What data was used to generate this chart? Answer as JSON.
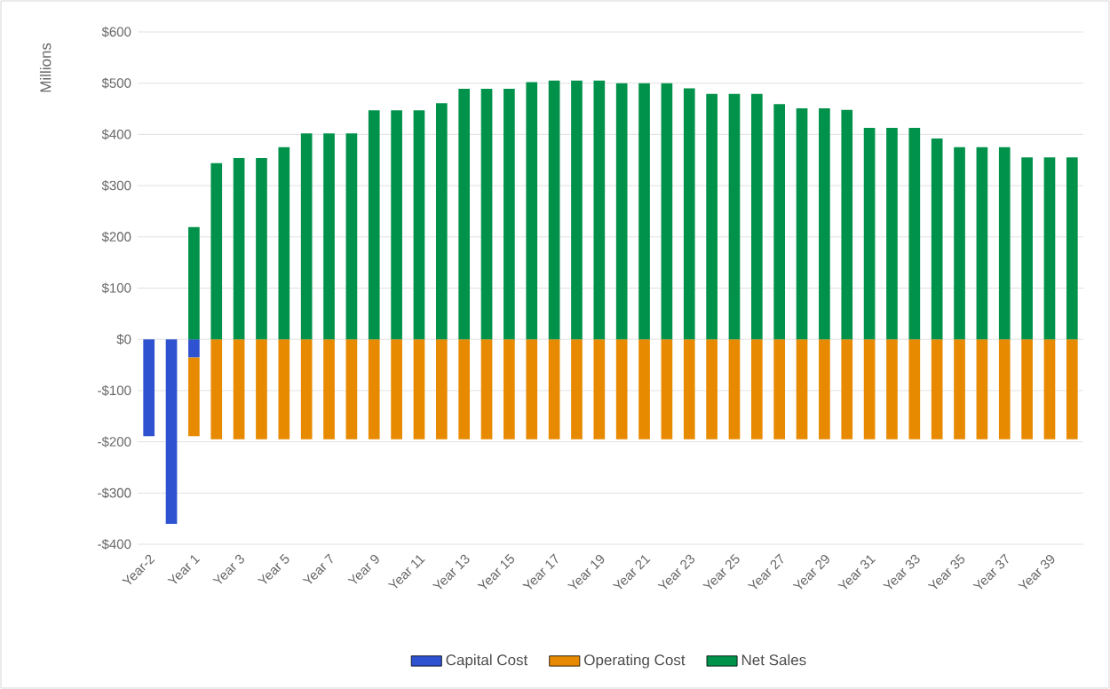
{
  "chart_data": {
    "type": "bar",
    "stacked": true,
    "ylabel": "Millions",
    "categories": [
      "Year-2",
      null,
      "Year 1",
      null,
      "Year 3",
      null,
      "Year 5",
      null,
      "Year 7",
      null,
      "Year 9",
      null,
      "Year 11",
      null,
      "Year 13",
      null,
      "Year 15",
      null,
      "Year 17",
      null,
      "Year 19",
      null,
      "Year 21",
      null,
      "Year 23",
      null,
      "Year 25",
      null,
      "Year 27",
      null,
      "Year 29",
      null,
      "Year 31",
      null,
      "Year 33",
      null,
      "Year 35",
      null,
      "Year 37",
      null,
      "Year 39",
      null
    ],
    "series": [
      {
        "name": "Capital Cost",
        "color": "#2e52d0",
        "values": [
          -189,
          -360,
          -35,
          0,
          0,
          0,
          0,
          0,
          0,
          0,
          0,
          0,
          0,
          0,
          0,
          0,
          0,
          0,
          0,
          0,
          0,
          0,
          0,
          0,
          0,
          0,
          0,
          0,
          0,
          0,
          0,
          0,
          0,
          0,
          0,
          0,
          0,
          0,
          0,
          0,
          0,
          0
        ]
      },
      {
        "name": "Operating Cost",
        "color": "#e88a00",
        "values": [
          0,
          0,
          -154,
          -195,
          -195,
          -195,
          -195,
          -195,
          -195,
          -195,
          -195,
          -195,
          -195,
          -195,
          -195,
          -195,
          -195,
          -195,
          -195,
          -195,
          -195,
          -195,
          -195,
          -195,
          -195,
          -195,
          -195,
          -195,
          -195,
          -195,
          -195,
          -195,
          -195,
          -195,
          -195,
          -195,
          -195,
          -195,
          -195,
          -195,
          -195,
          -195
        ]
      },
      {
        "name": "Net Sales",
        "color": "#00924a",
        "values": [
          0,
          0,
          219,
          344,
          354,
          354,
          375,
          402,
          402,
          402,
          447,
          447,
          447,
          461,
          489,
          489,
          489,
          502,
          505,
          505,
          505,
          500,
          500,
          500,
          490,
          479,
          479,
          479,
          459,
          451,
          451,
          448,
          413,
          413,
          413,
          392,
          375,
          375,
          375,
          355,
          355,
          355
        ]
      }
    ],
    "ylim": [
      -400,
      600
    ],
    "yticks": [
      {
        "value": -400,
        "label": "-$400"
      },
      {
        "value": -300,
        "label": "-$300"
      },
      {
        "value": -200,
        "label": "-$200"
      },
      {
        "value": -100,
        "label": "-$100"
      },
      {
        "value": 0,
        "label": "$0"
      },
      {
        "value": 100,
        "label": "$100"
      },
      {
        "value": 200,
        "label": "$200"
      },
      {
        "value": 300,
        "label": "$300"
      },
      {
        "value": 400,
        "label": "$400"
      },
      {
        "value": 500,
        "label": "$500"
      },
      {
        "value": 600,
        "label": "$600"
      }
    ],
    "grid": "y",
    "legend": "bottom"
  }
}
